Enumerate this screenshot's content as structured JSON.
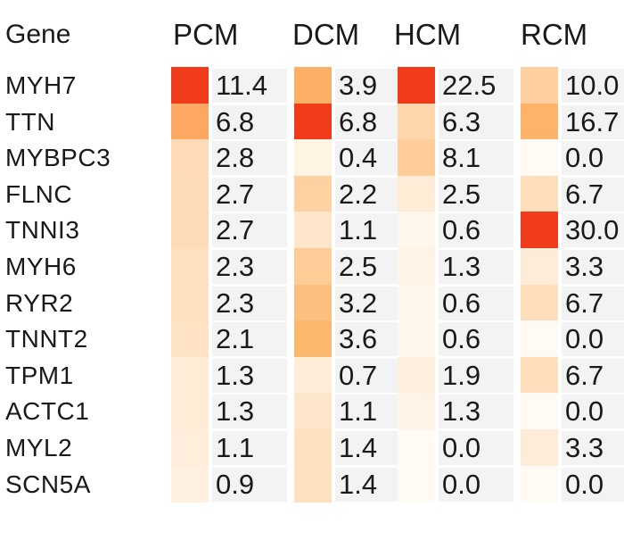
{
  "chart_data": {
    "type": "heatmap",
    "row_header": "Gene",
    "columns": [
      "PCM",
      "DCM",
      "HCM",
      "RCM"
    ],
    "rows": [
      "MYH7",
      "TTN",
      "MYBPC3",
      "FLNC",
      "TNNI3",
      "MYH6",
      "RYR2",
      "TNNT2",
      "TPM1",
      "ACTC1",
      "MYL2",
      "SCN5A"
    ],
    "values": [
      [
        11.4,
        3.9,
        22.5,
        10.0
      ],
      [
        6.8,
        6.8,
        6.3,
        16.7
      ],
      [
        2.8,
        0.4,
        8.1,
        0.0
      ],
      [
        2.7,
        2.2,
        2.5,
        6.7
      ],
      [
        2.7,
        1.1,
        0.6,
        30.0
      ],
      [
        2.3,
        2.5,
        1.3,
        3.3
      ],
      [
        2.3,
        3.2,
        0.6,
        6.7
      ],
      [
        2.1,
        3.6,
        0.6,
        0.0
      ],
      [
        1.3,
        0.7,
        1.9,
        6.7
      ],
      [
        1.3,
        1.1,
        1.3,
        0.0
      ],
      [
        1.1,
        1.4,
        0.0,
        3.3
      ],
      [
        0.9,
        1.4,
        0.0,
        0.0
      ]
    ],
    "value_labels": [
      [
        "11.4",
        "3.9",
        "22.5",
        "10.0"
      ],
      [
        "6.8",
        "6.8",
        "6.3",
        "16.7"
      ],
      [
        "2.8",
        "0.4",
        "8.1",
        "0.0"
      ],
      [
        "2.7",
        "2.2",
        "2.5",
        "6.7"
      ],
      [
        "2.7",
        "1.1",
        "0.6",
        "30.0"
      ],
      [
        "2.3",
        "2.5",
        "1.3",
        "3.3"
      ],
      [
        "2.3",
        "3.2",
        "0.6",
        "6.7"
      ],
      [
        "2.1",
        "3.6",
        "0.6",
        "0.0"
      ],
      [
        "1.3",
        "0.7",
        "1.9",
        "6.7"
      ],
      [
        "1.3",
        "1.1",
        "1.3",
        "0.0"
      ],
      [
        "1.1",
        "1.4",
        "0.0",
        "3.3"
      ],
      [
        "0.9",
        "1.4",
        "0.0",
        "0.0"
      ]
    ],
    "color_scale": {
      "low": "#fffaf3",
      "mid": "#fdb56a",
      "high": "#f03c1a"
    }
  }
}
